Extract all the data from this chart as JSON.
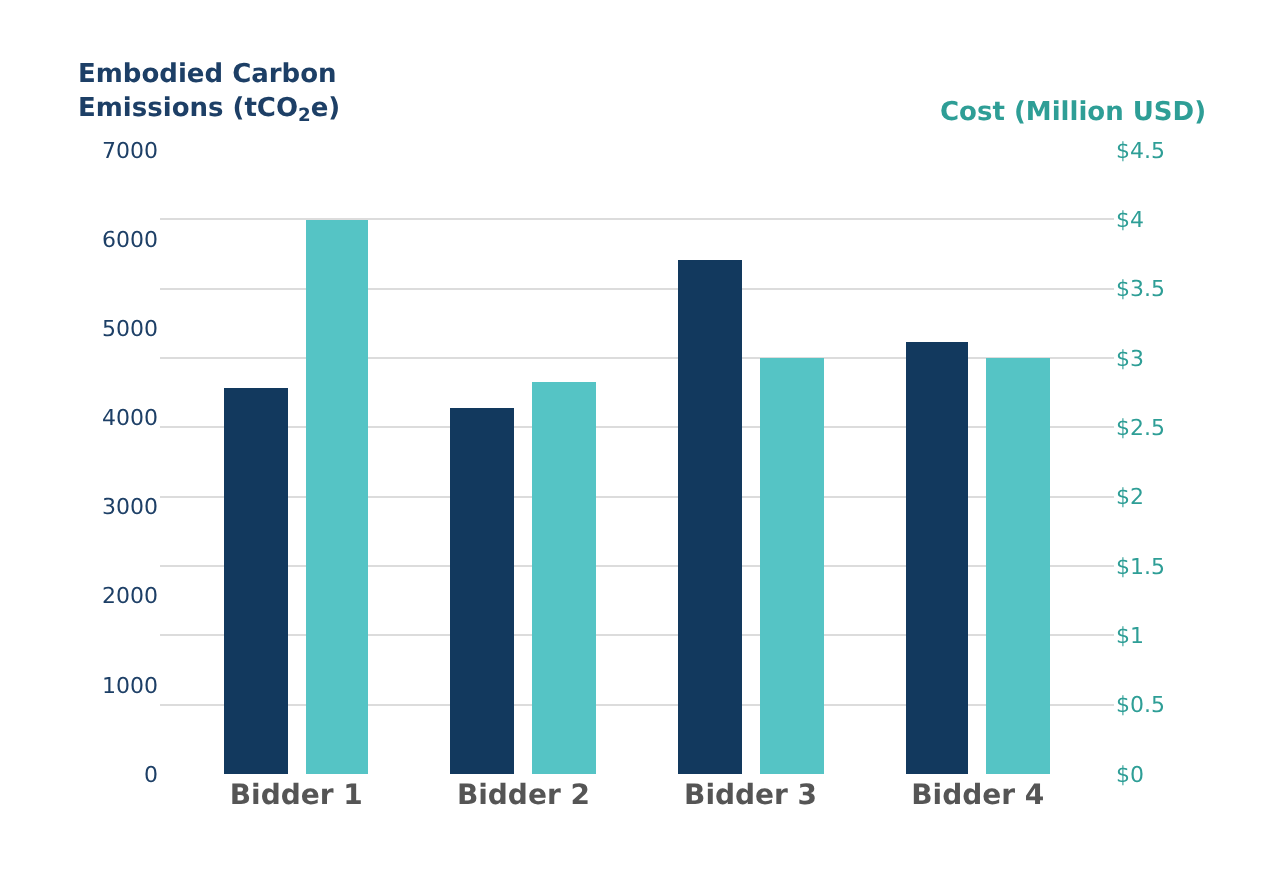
{
  "chart_data": {
    "type": "bar",
    "categories": [
      "Bidder 1",
      "Bidder 2",
      "Bidder 3",
      "Bidder 4"
    ],
    "ylabel": "Embodied Carbon Emissions (tCO$_{2}$e)",
    "y2label": "Cost (Million USD)",
    "series": [
      {
        "color": "#12395e",
        "values": [
          4330,
          4110,
          5760,
          4840
        ]
      },
      {
        "color": "#55c4c5",
        "values": [
          4.0,
          2.83,
          3.0,
          3.0
        ],
        "axis": "y2"
      }
    ],
    "ylim": [
      0,
      7000
    ],
    "yticks": [
      0,
      1000,
      2000,
      3000,
      4000,
      5000,
      6000,
      7000
    ],
    "y2lim": [
      0,
      4.5
    ],
    "y2ticks": [
      {
        "value": 0,
        "label": "$0"
      },
      {
        "value": 0.5,
        "label": "$0.5"
      },
      {
        "value": 1,
        "label": "$1"
      },
      {
        "value": 1.5,
        "label": "$1.5"
      },
      {
        "value": 2,
        "label": "$2"
      },
      {
        "value": 2.5,
        "label": "$2.5"
      },
      {
        "value": 3,
        "label": "$3"
      },
      {
        "value": 3.5,
        "label": "$3.5"
      },
      {
        "value": 4,
        "label": "$4"
      },
      {
        "value": 4.5,
        "label": "$4.5"
      }
    ],
    "grid": true
  }
}
